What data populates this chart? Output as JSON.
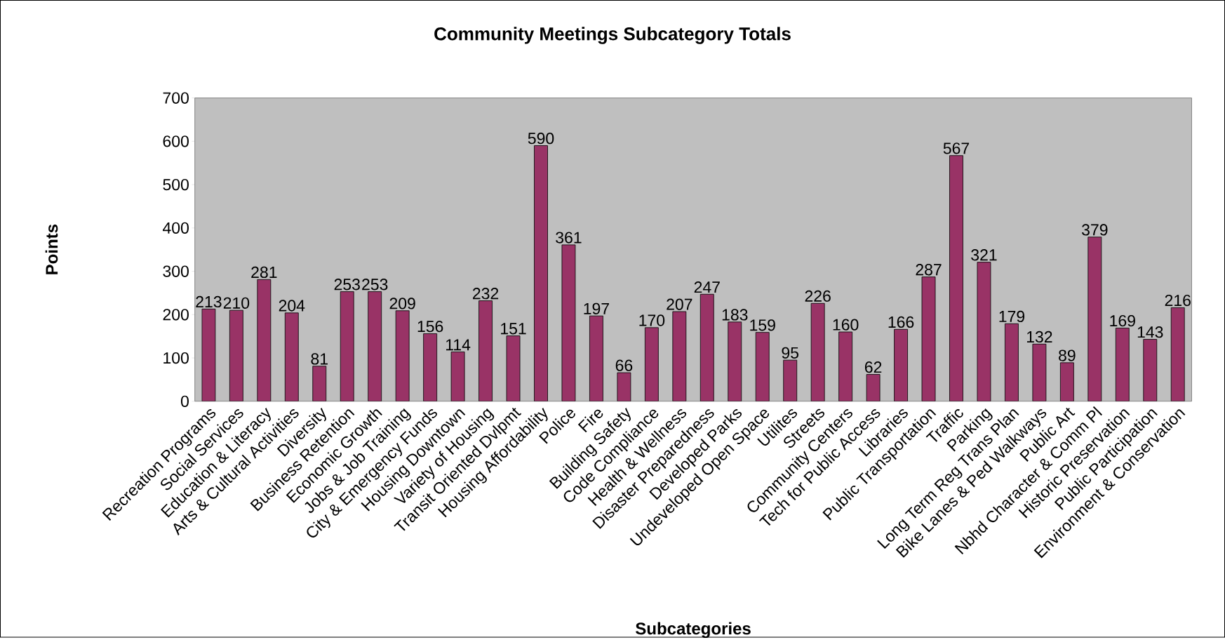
{
  "chart_data": {
    "type": "bar",
    "title": "Community Meetings Subcategory Totals",
    "xlabel": "Subcategories",
    "ylabel": "Points",
    "categories": [
      "Recreation Programs",
      "Social Services",
      "Education & Literacy",
      "Arts & Cultural Activities",
      "Diversity",
      "Business Retention",
      "Economic Growth",
      "Jobs & Job Training",
      "City & Emergency Funds",
      "Housing Downtown",
      "Variety of Housing",
      "Transit Oriented Dvlpmt",
      "Housing Affordability",
      "Police",
      "Fire",
      "Building Safety",
      "Code Compliance",
      "Health & Wellness",
      "Disaster Preparedness",
      "Developed Parks",
      "Undeveloped Open Space",
      "Utilites",
      "Streets",
      "Community Centers",
      "Tech for Public Access",
      "Libraries",
      "Public Transportation",
      "Traffic",
      "Parking",
      "Long Term Reg Trans Plan",
      "Bike Lanes & Ped Walkways",
      "Public Art",
      "Nbhd Character & Comm Pl",
      "Historic Preservation",
      "Public Participation",
      "Environment & Conservation"
    ],
    "values": [
      213,
      210,
      281,
      204,
      81,
      253,
      253,
      209,
      156,
      114,
      232,
      151,
      590,
      361,
      197,
      66,
      170,
      207,
      247,
      183,
      159,
      95,
      226,
      160,
      62,
      166,
      287,
      567,
      321,
      179,
      132,
      89,
      379,
      169,
      143,
      216
    ],
    "color": "#993366",
    "ylim": [
      0,
      700
    ],
    "yticks": [
      0,
      100,
      200,
      300,
      400,
      500,
      600,
      700
    ],
    "data_labels": true
  }
}
